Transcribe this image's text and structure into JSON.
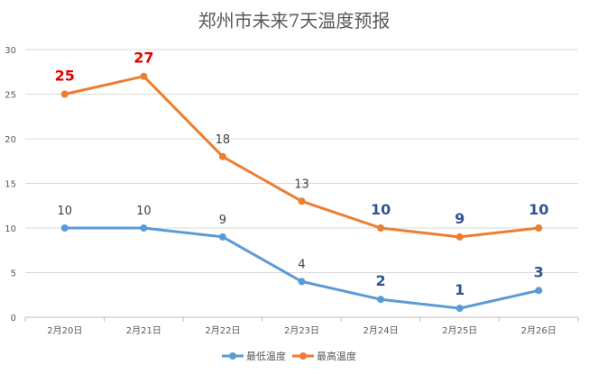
{
  "chart_data": {
    "type": "line",
    "title": "郑州市未来7天温度预报",
    "xlabel": "",
    "ylabel": "",
    "ylim": [
      0,
      30
    ],
    "yticks": [
      0,
      5,
      10,
      15,
      20,
      25,
      30
    ],
    "grid": true,
    "legend_position": "bottom",
    "categories": [
      "2月20日",
      "2月21日",
      "2月22日",
      "2月23日",
      "2月24日",
      "2月25日",
      "2月26日"
    ],
    "series": [
      {
        "name": "最低温度",
        "color": "#5B9BD5",
        "values": [
          10,
          10,
          9,
          4,
          2,
          1,
          3
        ],
        "label_colors": [
          "#404040",
          "#404040",
          "#404040",
          "#404040",
          "#2F5597",
          "#2F5597",
          "#2F5597"
        ],
        "label_bold": [
          false,
          false,
          false,
          false,
          true,
          true,
          true
        ]
      },
      {
        "name": "最高温度",
        "color": "#ED7D31",
        "values": [
          25,
          27,
          18,
          13,
          10,
          9,
          10
        ],
        "label_colors": [
          "#E00000",
          "#E00000",
          "#404040",
          "#404040",
          "#2F5597",
          "#2F5597",
          "#2F5597"
        ],
        "label_bold": [
          true,
          true,
          false,
          false,
          true,
          true,
          true
        ]
      }
    ]
  }
}
